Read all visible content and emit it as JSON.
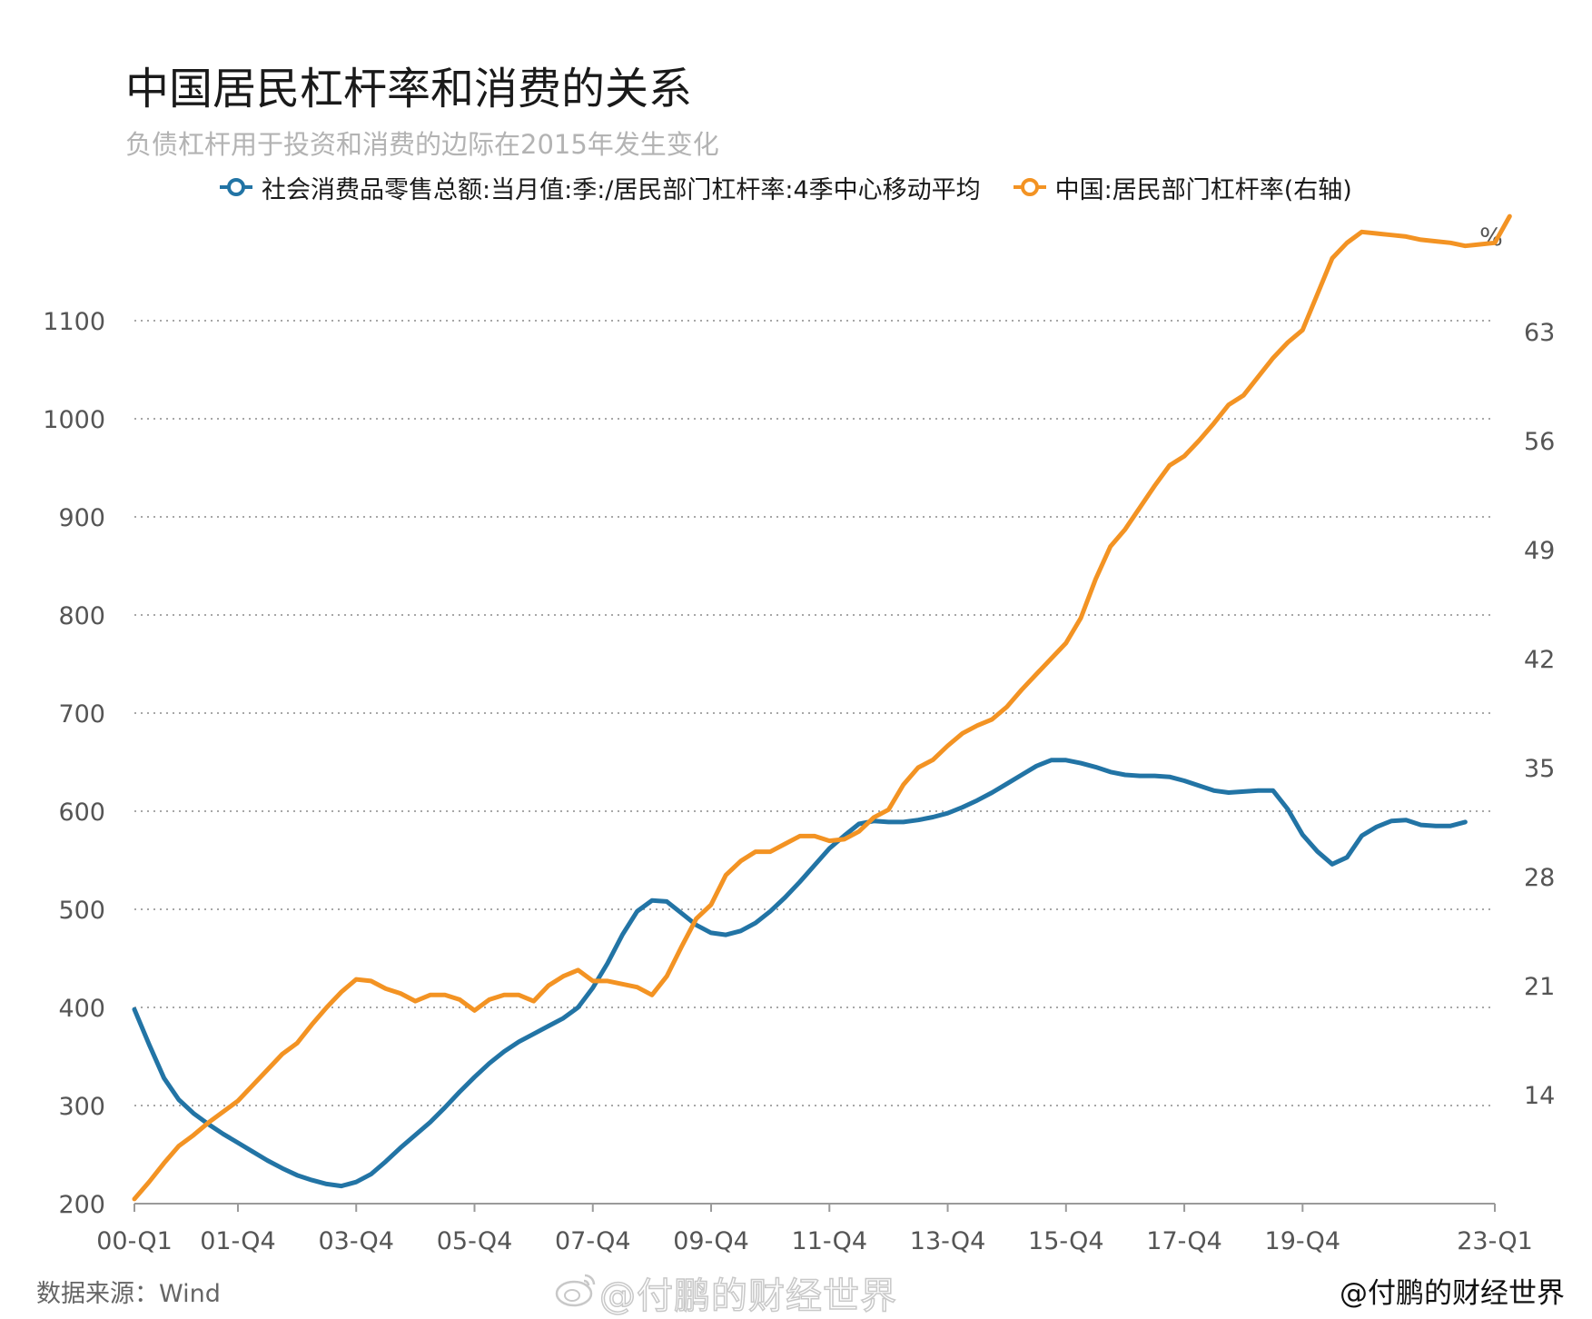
{
  "title": "中国居民杠杆率和消费的关系",
  "subtitle": "负债杠杆用于投资和消费的边际在2015年发生变化",
  "source": "数据来源：Wind",
  "watermark": "@付鹏的财经世界",
  "credit": "@付鹏的财经世界",
  "chart_data": {
    "type": "line",
    "legend_position": "top",
    "grid": "horizontal-dotted",
    "x_start": "00-Q1",
    "x_tick_labels": [
      "00-Q1",
      "01-Q4",
      "03-Q4",
      "05-Q4",
      "07-Q4",
      "09-Q4",
      "11-Q4",
      "13-Q4",
      "15-Q4",
      "17-Q4",
      "19-Q4",
      "23-Q1"
    ],
    "x_tick_positions": [
      0,
      7,
      15,
      23,
      31,
      39,
      47,
      55,
      63,
      71,
      79,
      92
    ],
    "y_left": {
      "ticks": [
        200,
        300,
        400,
        500,
        600,
        700,
        800,
        900,
        1000,
        1100
      ],
      "range": [
        200,
        1200
      ]
    },
    "y_right": {
      "unit": "%",
      "ticks": [
        14,
        21,
        28,
        35,
        42,
        49,
        56,
        63
      ],
      "range": [
        7,
        70
      ]
    },
    "series": [
      {
        "name": "社会消费品零售总额:当月值:季:/居民部门杠杆率:4季中心移动平均",
        "axis": "left",
        "color": "#2274a5",
        "values": [
          398,
          362,
          328,
          306,
          292,
          281,
          271,
          262,
          253,
          244,
          236,
          229,
          224,
          220,
          218,
          222,
          230,
          243,
          257,
          270,
          283,
          298,
          314,
          329,
          343,
          355,
          365,
          373,
          381,
          389,
          400,
          420,
          445,
          474,
          498,
          509,
          508,
          496,
          484,
          476,
          474,
          478,
          486,
          498,
          512,
          528,
          545,
          562,
          575,
          587,
          590,
          589,
          589,
          591,
          594,
          598,
          604,
          611,
          619,
          628,
          637,
          646,
          652,
          652,
          649,
          645,
          640,
          637,
          636,
          636,
          635,
          631,
          626,
          621,
          619,
          620,
          621,
          621,
          602,
          576,
          559,
          546,
          553,
          575,
          584,
          590,
          591,
          586,
          585,
          585,
          589
        ]
      },
      {
        "name": "中国:居民部门杠杆率(右轴)",
        "axis": "right",
        "color": "#f39323",
        "values": [
          7.3,
          8.4,
          9.6,
          10.7,
          11.4,
          12.2,
          12.9,
          13.6,
          14.6,
          15.6,
          16.6,
          17.3,
          18.5,
          19.6,
          20.6,
          21.4,
          21.3,
          20.8,
          20.5,
          20.0,
          20.4,
          20.4,
          20.1,
          19.4,
          20.1,
          20.4,
          20.4,
          20.0,
          21.0,
          21.6,
          22.0,
          21.3,
          21.3,
          21.1,
          20.9,
          20.4,
          21.6,
          23.5,
          25.3,
          26.2,
          28.1,
          29.0,
          29.6,
          29.6,
          30.1,
          30.6,
          30.6,
          30.3,
          30.4,
          30.9,
          31.8,
          32.3,
          33.9,
          35.0,
          35.5,
          36.4,
          37.2,
          37.7,
          38.1,
          38.9,
          40.0,
          41.0,
          42.0,
          43.0,
          44.6,
          47.1,
          49.2,
          50.3,
          51.7,
          53.1,
          54.4,
          55.0,
          56.0,
          57.1,
          58.3,
          58.9,
          60.1,
          61.3,
          62.3,
          63.1,
          65.4,
          67.7,
          68.7,
          69.4,
          69.3,
          69.2,
          69.1,
          68.9,
          68.8,
          68.7,
          68.5,
          68.6,
          68.7,
          70.4
        ]
      }
    ]
  }
}
